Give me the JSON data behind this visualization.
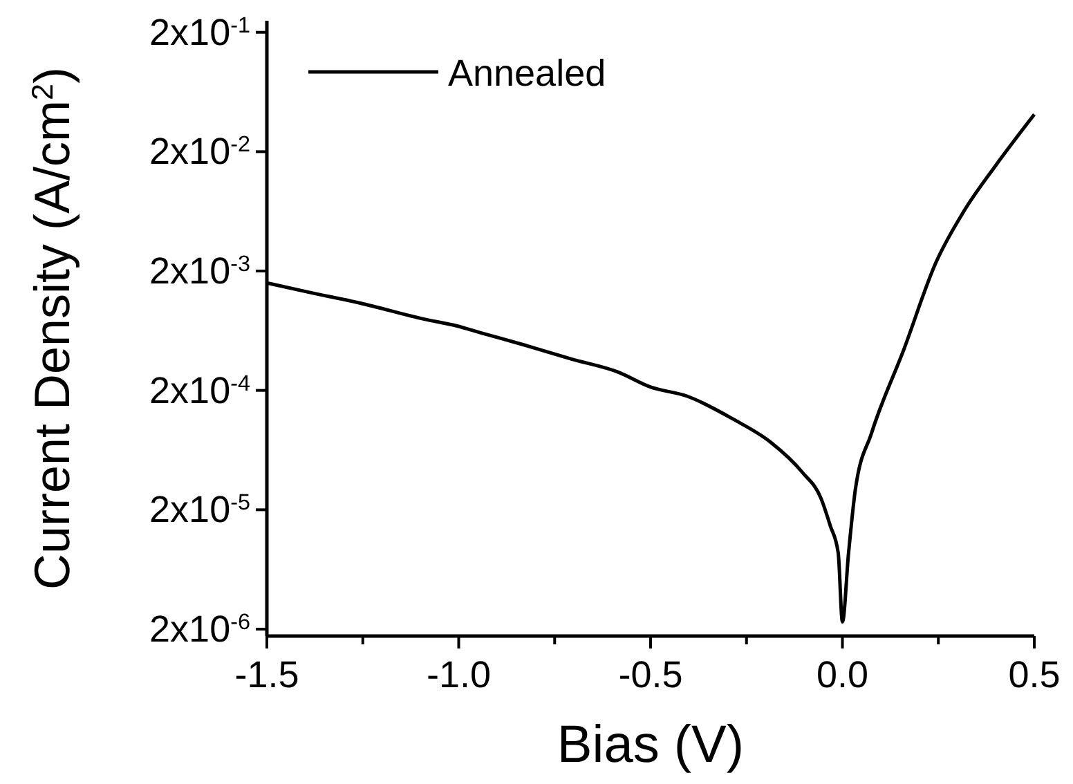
{
  "chart_data": {
    "type": "line",
    "xlabel": "Bias (V)",
    "ylabel": "Current Density (A/cm$^{2}$)",
    "log": "y",
    "legend": "top left",
    "line_style": "solid",
    "grid": false,
    "xlim": [
      -1.5,
      0.5
    ],
    "xticks": [
      -1.5,
      {
        "value": -1.25,
        "label": null
      },
      {
        "value": -1.0,
        "label": "-1.0"
      },
      {
        "value": -0.75,
        "label": null
      },
      -0.5,
      {
        "value": -0.25,
        "label": null
      },
      {
        "value": 0,
        "label": "0.0"
      },
      {
        "value": 0.25,
        "label": null
      },
      0.5
    ],
    "ylim": [
      1.75e-06,
      0.25
    ],
    "yticks": [
      {
        "value": 2e-06,
        "label": "2x10$^{-6}$"
      },
      {
        "value": 2e-05,
        "label": "2x10$^{-5}$"
      },
      {
        "value": 0.0002,
        "label": "2x10$^{-4}$"
      },
      {
        "value": 0.002,
        "label": "2x10$^{-3}$"
      },
      {
        "value": 0.02,
        "label": "2x10$^{-2}$"
      },
      {
        "value": 0.2,
        "label": "2x10$^{-1}$"
      }
    ],
    "x": [
      -1.5,
      -1.391,
      -1.258,
      -1.09,
      -1.006,
      -0.946,
      -0.826,
      -0.706,
      -0.585,
      -0.501,
      -0.405,
      -0.285,
      -0.188,
      -0.104,
      -0.056,
      -0.032,
      -0.011,
      0,
      0.016,
      0.034,
      0.076,
      0.16,
      0.244,
      0.316,
      0.4,
      0.5
    ],
    "series": [
      {
        "name": "Annealed",
        "color": "#000000",
        "values": [
          0.00159,
          0.00133,
          0.00108,
          0.00079,
          0.000695,
          0.000612,
          0.000477,
          0.000366,
          0.000285,
          0.000214,
          0.000179,
          0.000115,
          7.4e-05,
          4.1e-05,
          2.5e-05,
          1.48e-05,
          8.7e-06,
          2.3e-06,
          8.7e-06,
          3e-05,
          8.8e-05,
          0.00044,
          0.00237,
          0.0063,
          0.0154,
          0.041
        ]
      }
    ]
  }
}
